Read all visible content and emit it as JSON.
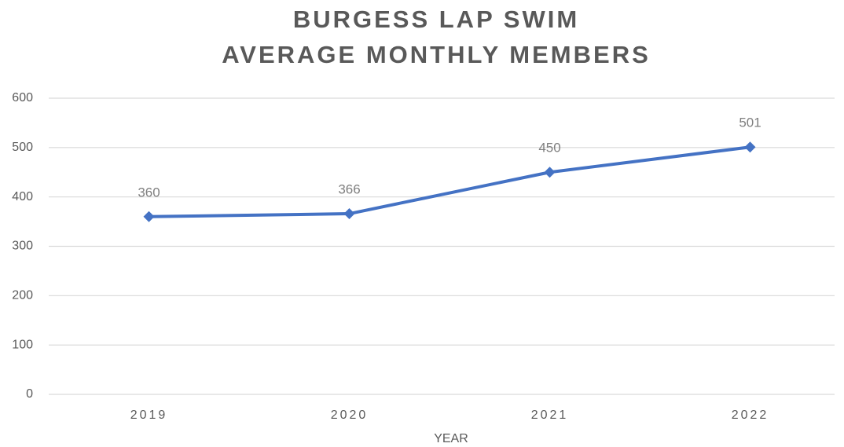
{
  "chart_data": {
    "type": "line",
    "title": "BURGESS LAP SWIM",
    "subtitle": "AVERAGE MONTHLY MEMBERS",
    "x_label": "YEAR",
    "categories": [
      "2019",
      "2020",
      "2021",
      "2022"
    ],
    "values": [
      360,
      366,
      450,
      501
    ],
    "color": "#4472c4",
    "ylim": [
      0,
      600
    ],
    "yticks": [
      0,
      100,
      200,
      300,
      400,
      500,
      600
    ],
    "grid": true
  }
}
